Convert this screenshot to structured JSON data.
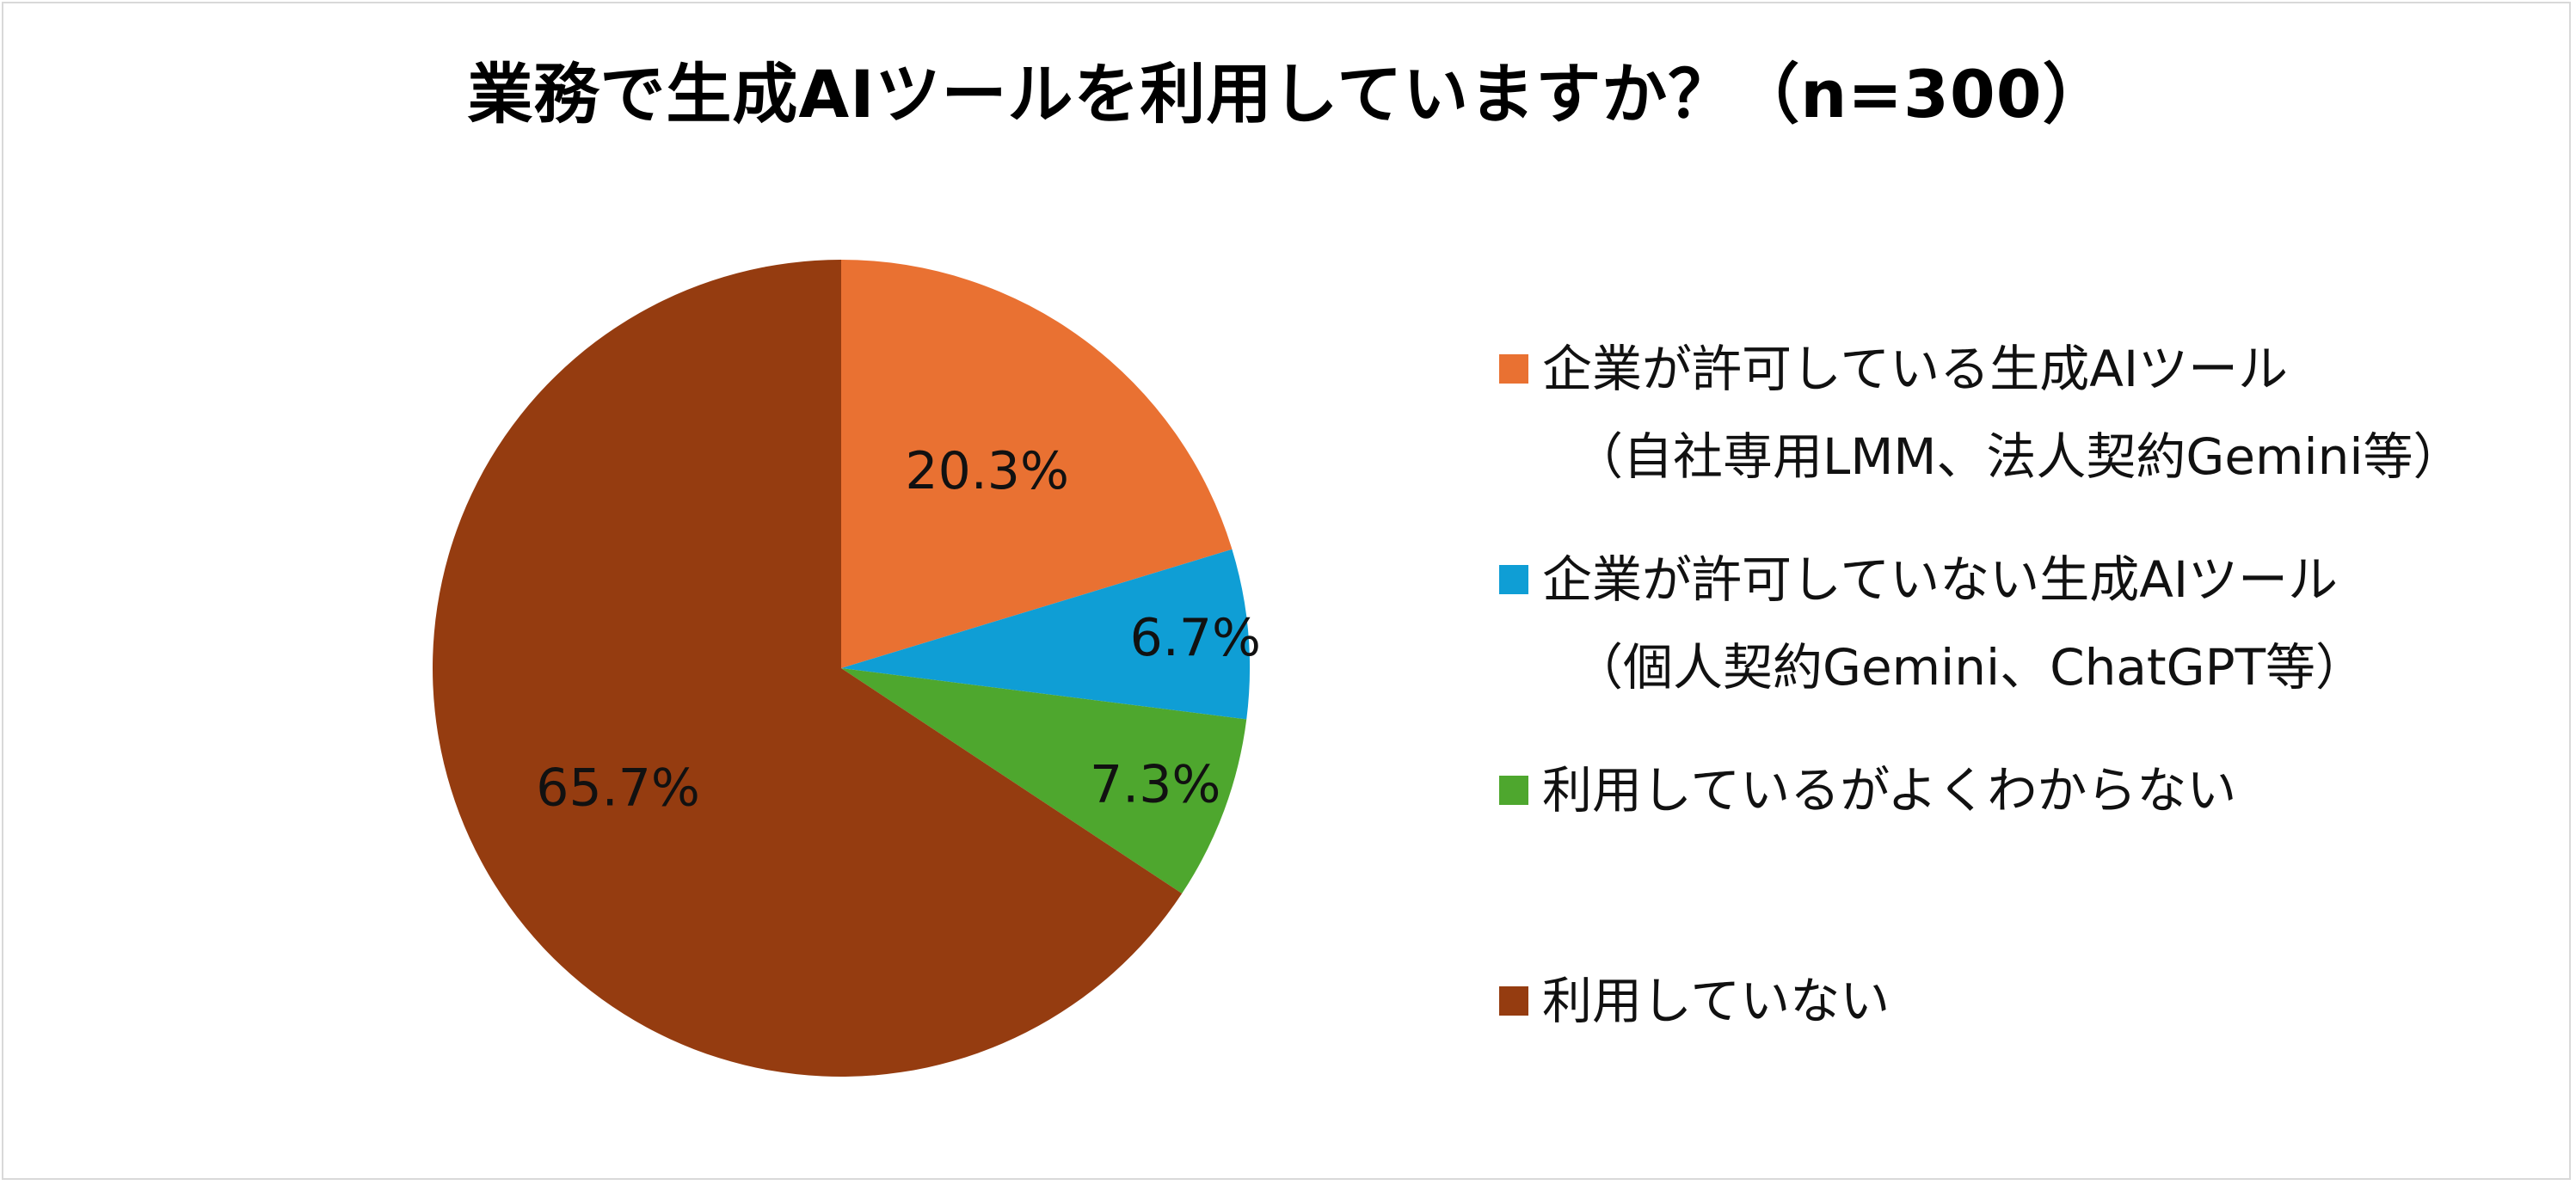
{
  "chart_data": {
    "type": "pie",
    "title": "業務で生成AIツールを利用していますか？（n=300）",
    "slices": [
      {
        "label": "企業が許可している生成AIツール",
        "sublabel": "（自社専用LMM、法人契約Gemini等）",
        "value": 20.3,
        "value_label": "20.3%",
        "color": "#e97132"
      },
      {
        "label": "企業が許可していない生成AIツール",
        "sublabel": "（個人契約Gemini、ChatGPT等）",
        "value": 6.7,
        "value_label": "6.7%",
        "color": "#0f9ed5"
      },
      {
        "label": "利用しているがよくわからない",
        "sublabel": "",
        "value": 7.3,
        "value_label": "7.3%",
        "color": "#4ea72e"
      },
      {
        "label": "利用していない",
        "sublabel": "",
        "value": 65.7,
        "value_label": "65.7%",
        "color": "#953c10"
      }
    ],
    "start_angle_deg": 0,
    "direction": "clockwise",
    "legend_position": "right"
  }
}
